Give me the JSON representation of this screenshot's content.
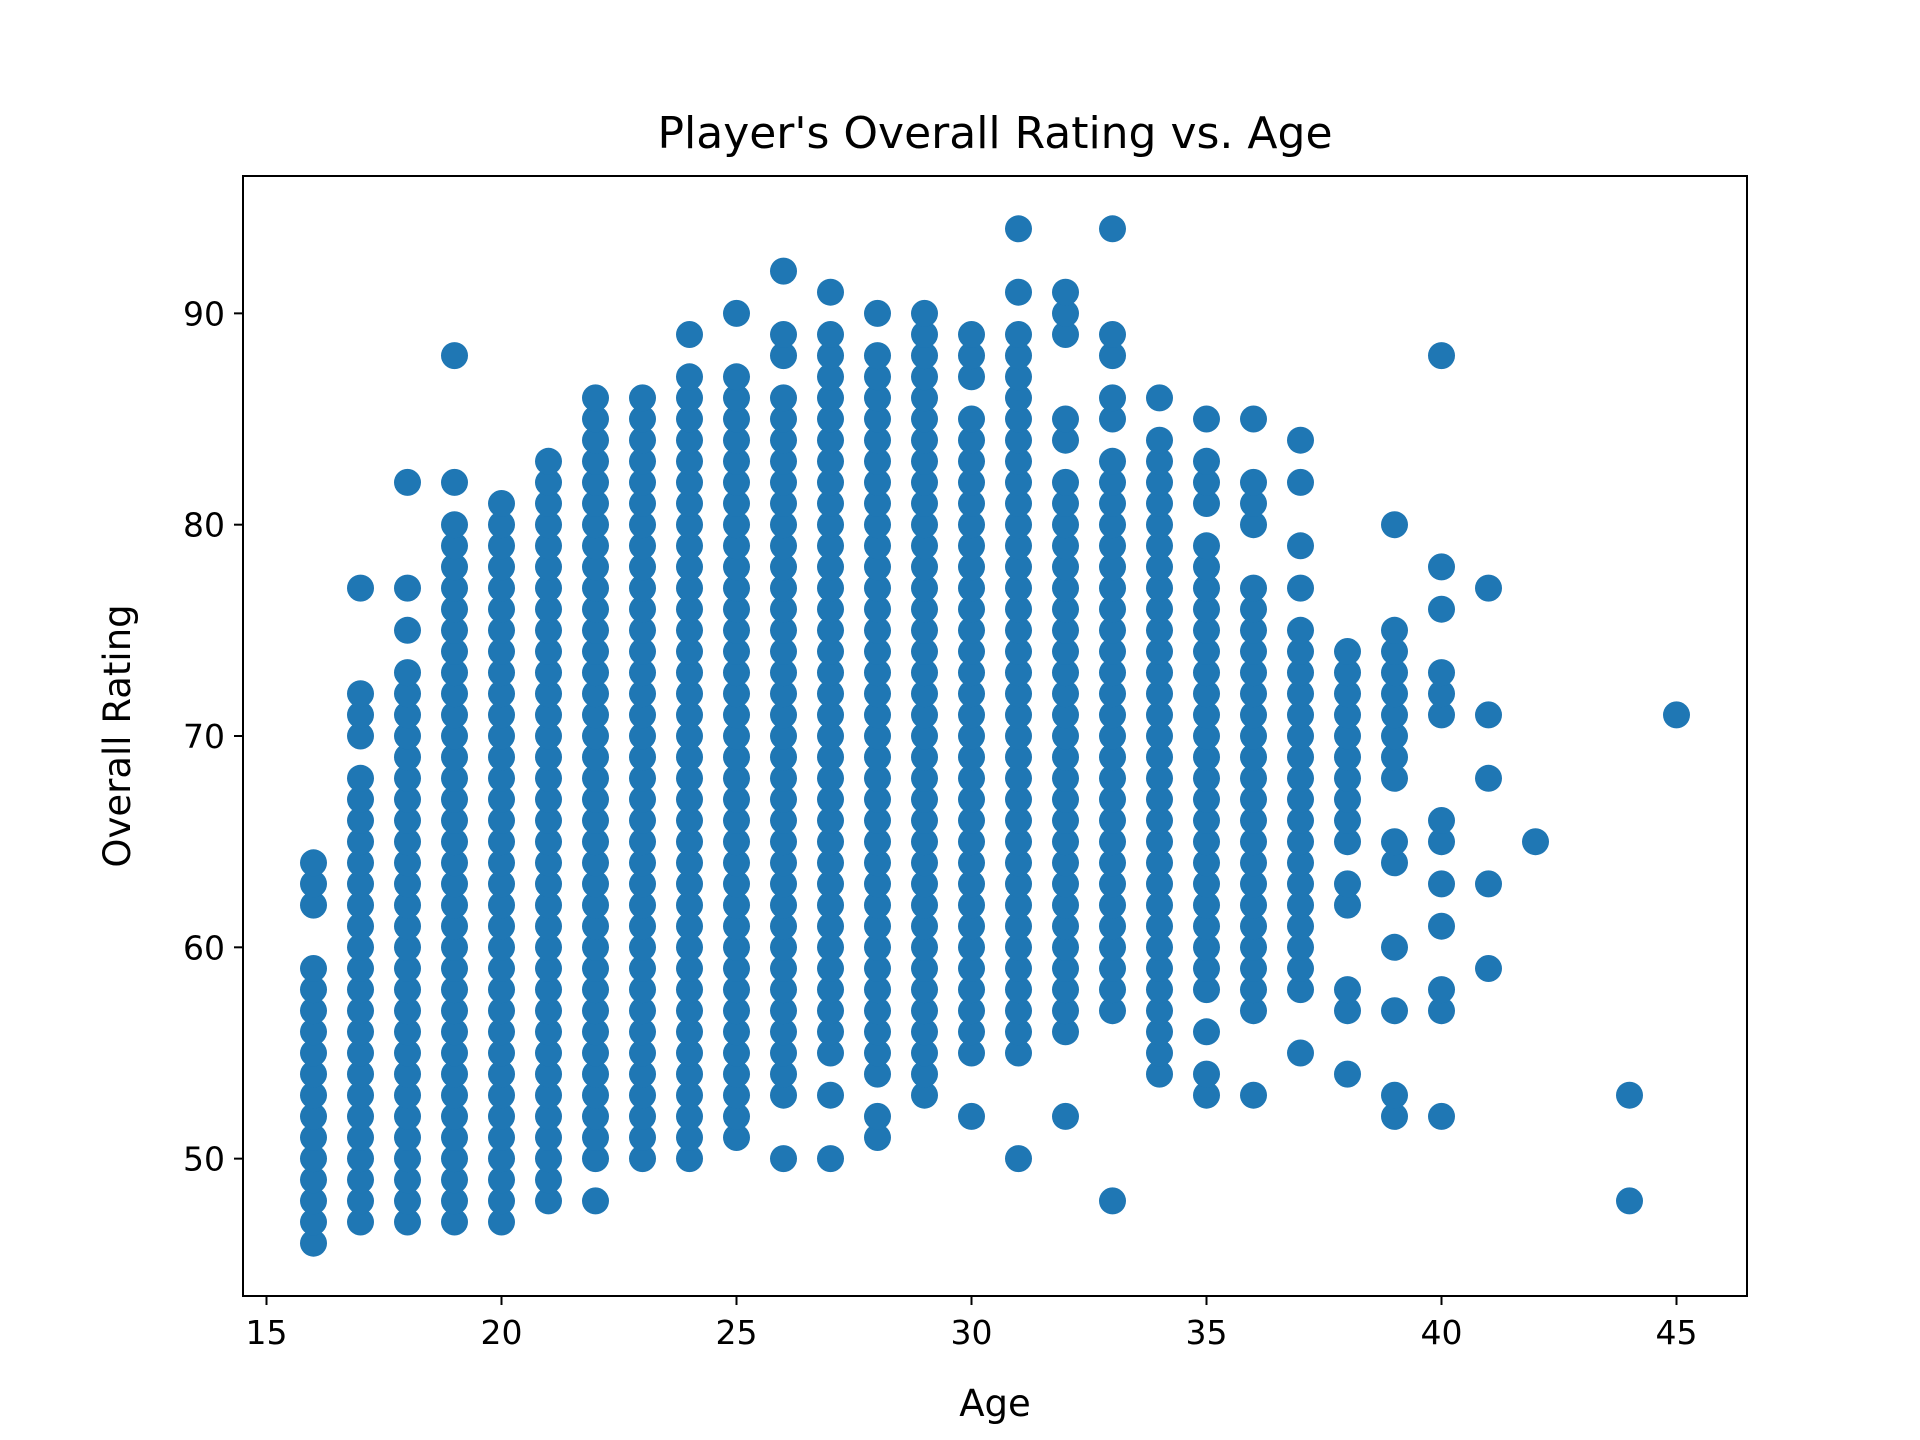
{
  "chart_data": {
    "type": "scatter",
    "title": "Player's Overall Rating vs. Age",
    "xlabel": "Age",
    "ylabel": "Overall Rating",
    "xlim": [
      14.5,
      46.5
    ],
    "ylim": [
      43.5,
      96.5
    ],
    "xticks": [
      15,
      20,
      25,
      30,
      35,
      40,
      45
    ],
    "yticks": [
      50,
      60,
      70,
      80,
      90
    ],
    "grid": false,
    "legend": "none",
    "marker_color": "#1f77b4",
    "series": [
      {
        "points": [
          {
            "age": 16,
            "ratings": [
              46,
              47,
              48,
              49,
              50,
              51,
              52,
              53,
              54,
              55,
              56,
              57,
              58,
              59,
              62,
              63,
              64
            ]
          },
          {
            "age": 17,
            "ratings": [
              47,
              48,
              49,
              50,
              51,
              52,
              53,
              54,
              55,
              56,
              57,
              58,
              59,
              60,
              61,
              62,
              63,
              64,
              65,
              66,
              67,
              68,
              70,
              71,
              72,
              77
            ]
          },
          {
            "age": 18,
            "ratings": [
              47,
              48,
              49,
              50,
              51,
              52,
              53,
              54,
              55,
              56,
              57,
              58,
              59,
              60,
              61,
              62,
              63,
              64,
              65,
              66,
              67,
              68,
              69,
              70,
              71,
              72,
              73,
              75,
              77,
              82
            ]
          },
          {
            "age": 19,
            "ratings": [
              47,
              48,
              49,
              50,
              51,
              52,
              53,
              54,
              55,
              56,
              57,
              58,
              59,
              60,
              61,
              62,
              63,
              64,
              65,
              66,
              67,
              68,
              69,
              70,
              71,
              72,
              73,
              74,
              75,
              76,
              77,
              78,
              79,
              80,
              82,
              88
            ]
          },
          {
            "age": 20,
            "ratings": [
              47,
              48,
              49,
              50,
              51,
              52,
              53,
              54,
              55,
              56,
              57,
              58,
              59,
              60,
              61,
              62,
              63,
              64,
              65,
              66,
              67,
              68,
              69,
              70,
              71,
              72,
              73,
              74,
              75,
              76,
              77,
              78,
              79,
              80,
              81
            ]
          },
          {
            "age": 21,
            "ratings": [
              48,
              49,
              50,
              51,
              52,
              53,
              54,
              55,
              56,
              57,
              58,
              59,
              60,
              61,
              62,
              63,
              64,
              65,
              66,
              67,
              68,
              69,
              70,
              71,
              72,
              73,
              74,
              75,
              76,
              77,
              78,
              79,
              80,
              81,
              82,
              83
            ]
          },
          {
            "age": 22,
            "ratings": [
              48,
              50,
              51,
              52,
              53,
              54,
              55,
              56,
              57,
              58,
              59,
              60,
              61,
              62,
              63,
              64,
              65,
              66,
              67,
              68,
              69,
              70,
              71,
              72,
              73,
              74,
              75,
              76,
              77,
              78,
              79,
              80,
              81,
              82,
              83,
              84,
              85,
              86
            ]
          },
          {
            "age": 23,
            "ratings": [
              50,
              51,
              52,
              53,
              54,
              55,
              56,
              57,
              58,
              59,
              60,
              61,
              62,
              63,
              64,
              65,
              66,
              67,
              68,
              69,
              70,
              71,
              72,
              73,
              74,
              75,
              76,
              77,
              78,
              79,
              80,
              81,
              82,
              83,
              84,
              85,
              86
            ]
          },
          {
            "age": 24,
            "ratings": [
              50,
              51,
              52,
              53,
              54,
              55,
              56,
              57,
              58,
              59,
              60,
              61,
              62,
              63,
              64,
              65,
              66,
              67,
              68,
              69,
              70,
              71,
              72,
              73,
              74,
              75,
              76,
              77,
              78,
              79,
              80,
              81,
              82,
              83,
              84,
              85,
              86,
              87,
              89
            ]
          },
          {
            "age": 25,
            "ratings": [
              51,
              52,
              53,
              54,
              55,
              56,
              57,
              58,
              59,
              60,
              61,
              62,
              63,
              64,
              65,
              66,
              67,
              68,
              69,
              70,
              71,
              72,
              73,
              74,
              75,
              76,
              77,
              78,
              79,
              80,
              81,
              82,
              83,
              84,
              85,
              86,
              87,
              90
            ]
          },
          {
            "age": 26,
            "ratings": [
              50,
              53,
              54,
              55,
              56,
              57,
              58,
              59,
              60,
              61,
              62,
              63,
              64,
              65,
              66,
              67,
              68,
              69,
              70,
              71,
              72,
              73,
              74,
              75,
              76,
              77,
              78,
              79,
              80,
              81,
              82,
              83,
              84,
              85,
              86,
              88,
              89,
              92
            ]
          },
          {
            "age": 27,
            "ratings": [
              50,
              53,
              55,
              56,
              57,
              58,
              59,
              60,
              61,
              62,
              63,
              64,
              65,
              66,
              67,
              68,
              69,
              70,
              71,
              72,
              73,
              74,
              75,
              76,
              77,
              78,
              79,
              80,
              81,
              82,
              83,
              84,
              85,
              86,
              87,
              88,
              89,
              91
            ]
          },
          {
            "age": 28,
            "ratings": [
              51,
              52,
              54,
              55,
              56,
              57,
              58,
              59,
              60,
              61,
              62,
              63,
              64,
              65,
              66,
              67,
              68,
              69,
              70,
              71,
              72,
              73,
              74,
              75,
              76,
              77,
              78,
              79,
              80,
              81,
              82,
              83,
              84,
              85,
              86,
              87,
              88,
              90
            ]
          },
          {
            "age": 29,
            "ratings": [
              53,
              54,
              55,
              56,
              57,
              58,
              59,
              60,
              61,
              62,
              63,
              64,
              65,
              66,
              67,
              68,
              69,
              70,
              71,
              72,
              73,
              74,
              75,
              76,
              77,
              78,
              79,
              80,
              81,
              82,
              83,
              84,
              85,
              86,
              87,
              88,
              89,
              90
            ]
          },
          {
            "age": 30,
            "ratings": [
              52,
              55,
              56,
              57,
              58,
              59,
              60,
              61,
              62,
              63,
              64,
              65,
              66,
              67,
              68,
              69,
              70,
              71,
              72,
              73,
              74,
              75,
              76,
              77,
              78,
              79,
              80,
              81,
              82,
              83,
              84,
              85,
              87,
              88,
              89
            ]
          },
          {
            "age": 31,
            "ratings": [
              50,
              55,
              56,
              57,
              58,
              59,
              60,
              61,
              62,
              63,
              64,
              65,
              66,
              67,
              68,
              69,
              70,
              71,
              72,
              73,
              74,
              75,
              76,
              77,
              78,
              79,
              80,
              81,
              82,
              83,
              84,
              85,
              86,
              87,
              88,
              89,
              91,
              94
            ]
          },
          {
            "age": 32,
            "ratings": [
              52,
              56,
              57,
              58,
              59,
              60,
              61,
              62,
              63,
              64,
              65,
              66,
              67,
              68,
              69,
              70,
              71,
              72,
              73,
              74,
              75,
              76,
              77,
              78,
              79,
              80,
              81,
              82,
              84,
              85,
              89,
              90,
              91
            ]
          },
          {
            "age": 33,
            "ratings": [
              48,
              57,
              58,
              59,
              60,
              61,
              62,
              63,
              64,
              65,
              66,
              67,
              68,
              69,
              70,
              71,
              72,
              73,
              74,
              75,
              76,
              77,
              78,
              79,
              80,
              81,
              82,
              83,
              85,
              86,
              88,
              89,
              94
            ]
          },
          {
            "age": 34,
            "ratings": [
              54,
              55,
              56,
              57,
              58,
              59,
              60,
              61,
              62,
              63,
              64,
              65,
              66,
              67,
              68,
              69,
              70,
              71,
              72,
              73,
              74,
              75,
              76,
              77,
              78,
              79,
              80,
              81,
              82,
              83,
              84,
              86
            ]
          },
          {
            "age": 35,
            "ratings": [
              53,
              54,
              56,
              58,
              59,
              60,
              61,
              62,
              63,
              64,
              65,
              66,
              67,
              68,
              69,
              70,
              71,
              72,
              73,
              74,
              75,
              76,
              77,
              78,
              79,
              81,
              82,
              83,
              85
            ]
          },
          {
            "age": 36,
            "ratings": [
              53,
              57,
              58,
              59,
              60,
              61,
              62,
              63,
              64,
              65,
              66,
              67,
              68,
              69,
              70,
              71,
              72,
              73,
              74,
              75,
              76,
              77,
              80,
              81,
              82,
              85
            ]
          },
          {
            "age": 37,
            "ratings": [
              55,
              58,
              59,
              60,
              61,
              62,
              63,
              64,
              65,
              66,
              67,
              68,
              69,
              70,
              71,
              72,
              73,
              74,
              75,
              77,
              79,
              82,
              84
            ]
          },
          {
            "age": 38,
            "ratings": [
              54,
              57,
              58,
              62,
              63,
              65,
              66,
              67,
              68,
              69,
              70,
              71,
              72,
              73,
              74
            ]
          },
          {
            "age": 39,
            "ratings": [
              52,
              53,
              57,
              60,
              64,
              65,
              68,
              69,
              70,
              71,
              72,
              73,
              74,
              75,
              80
            ]
          },
          {
            "age": 40,
            "ratings": [
              52,
              57,
              58,
              61,
              63,
              65,
              66,
              71,
              72,
              73,
              76,
              78,
              88
            ]
          },
          {
            "age": 41,
            "ratings": [
              59,
              63,
              68,
              71,
              77
            ]
          },
          {
            "age": 42,
            "ratings": [
              65
            ]
          },
          {
            "age": 44,
            "ratings": [
              48,
              53
            ]
          },
          {
            "age": 45,
            "ratings": [
              71
            ]
          }
        ]
      }
    ]
  }
}
